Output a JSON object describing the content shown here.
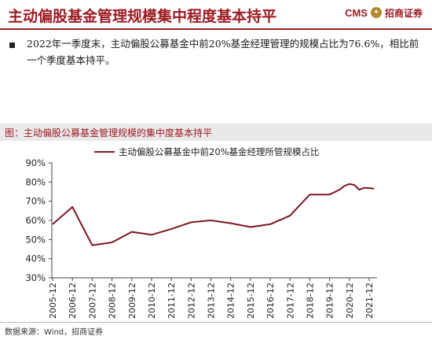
{
  "header": {
    "title": "主动偏股基金管理规模集中程度基本持平",
    "brand_code": "CMS",
    "brand_name": "招商证券"
  },
  "paragraph": "2022年一季度末，主动偏股公募基金中前20%基金经理管理的规模占比为76.6%，相比前一个季度基本持平。",
  "figure_title": "图：主动偏股公募基金管理规模的集中度基本持平",
  "source": "数据来源：Wind，招商证券",
  "colors": {
    "accent": "#9c1c24",
    "line": "#7b1622"
  },
  "chart_data": {
    "type": "line",
    "title": "",
    "xlabel": "",
    "ylabel": "",
    "ylim": [
      30,
      90
    ],
    "y_ticks": [
      "90%",
      "80%",
      "70%",
      "60%",
      "50%",
      "40%",
      "30%"
    ],
    "y_tick_values": [
      90,
      80,
      70,
      60,
      50,
      40,
      30
    ],
    "categories": [
      "2005-12",
      "2006-12",
      "2007-12",
      "2008-12",
      "2009-12",
      "2010-12",
      "2011-12",
      "2012-12",
      "2013-12",
      "2014-12",
      "2015-12",
      "2016-12",
      "2017-12",
      "2018-12",
      "2019-12",
      "2020-12",
      "2021-12"
    ],
    "legend_position": "top",
    "grid": false,
    "series": [
      {
        "name": "主动偏股公募基金中前20%基金经理所管规模占比",
        "x": [
          2005.95,
          2006.95,
          2007.95,
          2008.95,
          2009.95,
          2010.95,
          2011.95,
          2012.95,
          2013.95,
          2014.95,
          2015.95,
          2016.95,
          2017.95,
          2018.95,
          2019.95,
          2020.45,
          2020.7,
          2020.95,
          2021.2,
          2021.45,
          2021.7,
          2021.95,
          2022.2
        ],
        "values": [
          58,
          67,
          47,
          48.5,
          54,
          52.5,
          55.5,
          59,
          60,
          58.5,
          56.5,
          58,
          62.5,
          73.5,
          73.5,
          76,
          78,
          79,
          78.5,
          76,
          77,
          76.8,
          76.6
        ]
      }
    ]
  }
}
